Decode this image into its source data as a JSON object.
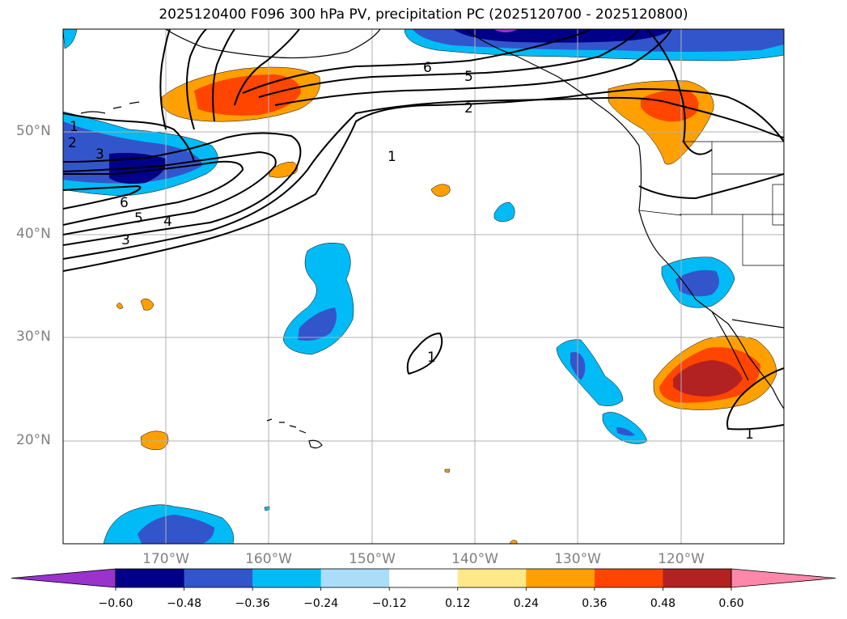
{
  "title": "2025120400 F096 300 hPa PV, precipitation PC (2025120700 - 2025120800)",
  "lat_labels": [
    "50°N",
    "40°N",
    "30°N",
    "20°N"
  ],
  "lon_labels": [
    "170°W",
    "160°W",
    "150°W",
    "140°W",
    "130°W",
    "120°W"
  ],
  "colorbar": {
    "ticks": [
      "−0.60",
      "−0.48",
      "−0.36",
      "−0.24",
      "−0.12",
      "0.12",
      "0.24",
      "0.36",
      "0.48",
      "0.60"
    ],
    "colors": [
      "#9933cc",
      "#000088",
      "#3355cc",
      "#00bbf5",
      "#aaddf8",
      "#ffffff",
      "#ffe888",
      "#ffa000",
      "#ff4500",
      "#b22222",
      "#ff88aa"
    ]
  },
  "contour_labels": {
    "pv": [
      "1",
      "2",
      "3",
      "4",
      "5",
      "6"
    ]
  },
  "fill_colors": {
    "purple": "#9933cc",
    "navy": "#000088",
    "blue": "#3355cc",
    "cyan": "#00bbf5",
    "orange": "#ffa000",
    "redorange": "#ff4500",
    "darkred": "#b22222"
  }
}
